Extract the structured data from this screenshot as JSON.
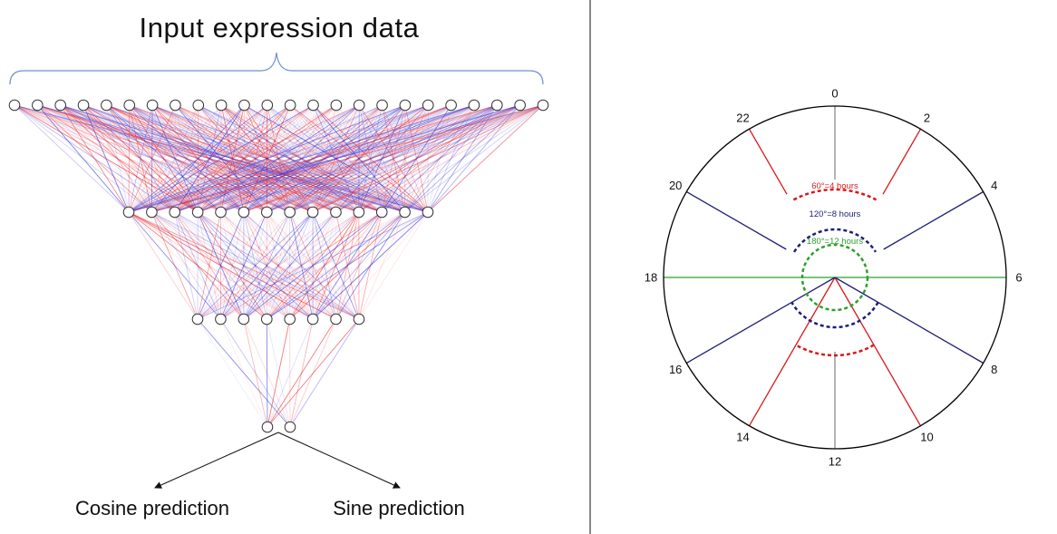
{
  "left_panel": {
    "title": "Input expression data",
    "layer_node_counts": [
      24,
      14,
      8,
      2
    ],
    "outputs": [
      "Cosine prediction",
      "Sine prediction"
    ],
    "edge_colors": {
      "positive": "#e8212a",
      "negative": "#2a2ad8"
    }
  },
  "right_panel": {
    "hour_labels": [
      "0",
      "2",
      "4",
      "6",
      "8",
      "10",
      "12",
      "14",
      "16",
      "18",
      "20",
      "22"
    ],
    "arcs": [
      {
        "label": "60°=4 hours",
        "color": "#d7191c"
      },
      {
        "label": "120°=8 hours",
        "color": "#1f1f78"
      },
      {
        "label": "180°=12 hours",
        "color": "#2ca02c"
      }
    ],
    "colors": {
      "circle": "#000000",
      "axis_0_12": "#808080",
      "axis_6_18": "#2ca02c",
      "spoke_60": "#d7191c",
      "spoke_120": "#1f1f78"
    }
  }
}
